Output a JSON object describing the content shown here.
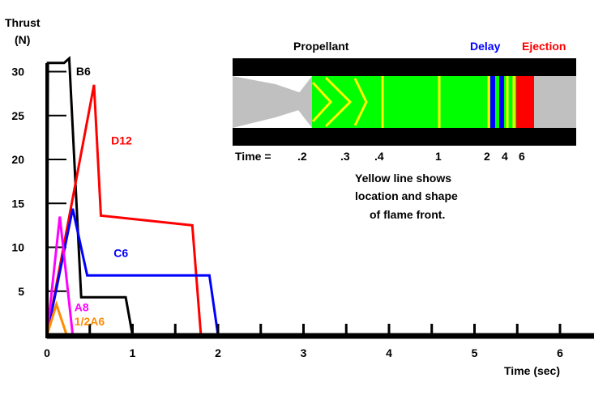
{
  "chart_data": {
    "type": "line",
    "title": "",
    "ylabel_line1": "Thrust",
    "ylabel_line2": "(N)",
    "xlabel": "Time (sec)",
    "xlim": [
      0,
      6.4
    ],
    "ylim": [
      0,
      32
    ],
    "grid": false,
    "x_ticks": [
      0,
      1,
      2,
      3,
      4,
      5,
      6
    ],
    "x_minor_step": 0.5,
    "y_ticks": [
      5,
      10,
      15,
      20,
      25,
      30
    ],
    "series": [
      {
        "name": "B6",
        "color": "#000000",
        "points": [
          [
            0.0,
            0
          ],
          [
            0.01,
            31
          ],
          [
            0.2,
            31
          ],
          [
            0.26,
            31.5
          ],
          [
            0.4,
            4.3
          ],
          [
            0.92,
            4.3
          ],
          [
            1.0,
            0
          ]
        ]
      },
      {
        "name": "D12",
        "color": "#ff0000",
        "points": [
          [
            0.0,
            0
          ],
          [
            0.55,
            28.5
          ],
          [
            0.63,
            13.6
          ],
          [
            1.7,
            12.5
          ],
          [
            1.8,
            0
          ]
        ]
      },
      {
        "name": "C6",
        "color": "#0000ff",
        "points": [
          [
            0.0,
            0
          ],
          [
            0.3,
            14.4
          ],
          [
            0.47,
            6.8
          ],
          [
            1.9,
            6.8
          ],
          [
            2.0,
            0
          ],
          [
            6.0,
            0
          ]
        ]
      },
      {
        "name": "A8",
        "color": "#ff00ff",
        "points": [
          [
            0.0,
            0
          ],
          [
            0.15,
            13.5
          ],
          [
            0.3,
            0
          ]
        ]
      },
      {
        "name": "1/2A6",
        "color": "#ff8c00",
        "points": [
          [
            0.0,
            0
          ],
          [
            0.11,
            3.5
          ],
          [
            0.23,
            0
          ]
        ]
      }
    ]
  },
  "diagram": {
    "propellant_label": "Propellant",
    "delay_label": "Delay",
    "ejection_label": "Ejection",
    "time_label": "Time =",
    "time_marks": [
      ".2",
      ".3",
      ".4",
      "1",
      "2",
      "4",
      "6"
    ],
    "caption": [
      "Yellow line shows",
      "location and shape",
      "of flame front."
    ],
    "colors": {
      "propellant": "#00ff00",
      "flame": "#ffff00",
      "delay": "#0000ff",
      "ejection": "#ff0000",
      "nozzle": "#c0c0c0",
      "casing": "#000000"
    }
  }
}
